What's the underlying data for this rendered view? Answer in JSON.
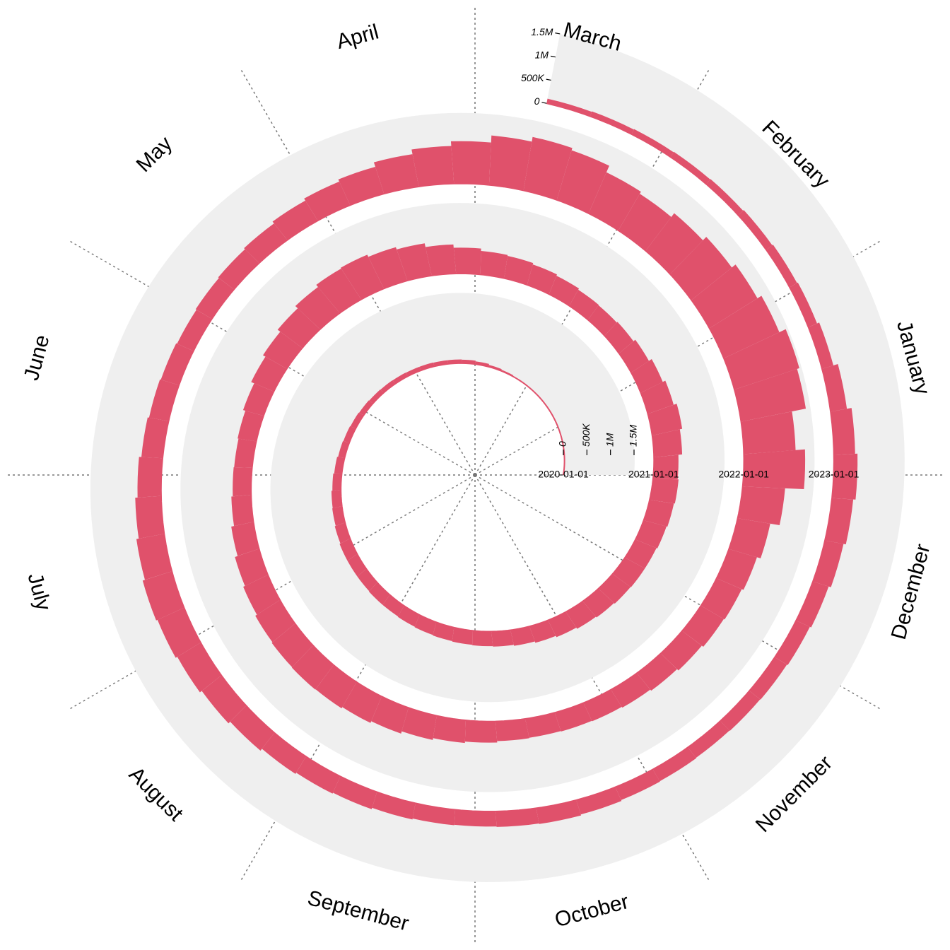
{
  "chart_data": {
    "type": "spiral-bar",
    "color": "#e0516b",
    "ylim": [
      0,
      1500000
    ],
    "yticks": [
      0,
      {
        "value": 500000,
        "label": "500K"
      },
      {
        "value": 1000000,
        "label": "1M"
      },
      {
        "value": 1500000,
        "label": "1.5M"
      }
    ],
    "xticks": [
      "2020-01-01",
      "2021-01-01",
      "2022-01-01",
      "2023-01-01"
    ],
    "months": [
      "January",
      "February",
      "March",
      "April",
      "May",
      "June",
      "July",
      "August",
      "September",
      "October",
      "November",
      "December"
    ],
    "x": [
      "2020-01-01",
      "2020-01-08",
      "2020-01-15",
      "2020-01-22",
      "2020-01-29",
      "2020-02-05",
      "2020-02-12",
      "2020-02-19",
      "2020-02-26",
      "2020-03-04",
      "2020-03-11",
      "2020-03-18",
      "2020-03-25",
      "2020-04-01",
      "2020-04-08",
      "2020-04-15",
      "2020-04-22",
      "2020-04-29",
      "2020-05-06",
      "2020-05-13",
      "2020-05-20",
      "2020-05-27",
      "2020-06-03",
      "2020-06-10",
      "2020-06-17",
      "2020-06-24",
      "2020-07-01",
      "2020-07-08",
      "2020-07-15",
      "2020-07-22",
      "2020-07-29",
      "2020-08-05",
      "2020-08-12",
      "2020-08-19",
      "2020-08-26",
      "2020-09-02",
      "2020-09-09",
      "2020-09-16",
      "2020-09-23",
      "2020-09-30",
      "2020-10-07",
      "2020-10-14",
      "2020-10-21",
      "2020-10-28",
      "2020-11-04",
      "2020-11-11",
      "2020-11-18",
      "2020-11-25",
      "2020-12-02",
      "2020-12-09",
      "2020-12-16",
      "2020-12-23",
      "2020-12-30",
      "2021-01-06",
      "2021-01-13",
      "2021-01-20",
      "2021-01-27",
      "2021-02-03",
      "2021-02-10",
      "2021-02-17",
      "2021-02-24",
      "2021-03-03",
      "2021-03-10",
      "2021-03-17",
      "2021-03-24",
      "2021-03-31",
      "2021-04-07",
      "2021-04-14",
      "2021-04-21",
      "2021-04-28",
      "2021-05-05",
      "2021-05-12",
      "2021-05-19",
      "2021-05-26",
      "2021-06-02",
      "2021-06-09",
      "2021-06-16",
      "2021-06-23",
      "2021-06-30",
      "2021-07-07",
      "2021-07-14",
      "2021-07-21",
      "2021-07-28",
      "2021-08-04",
      "2021-08-11",
      "2021-08-18",
      "2021-08-25",
      "2021-09-01",
      "2021-09-08",
      "2021-09-15",
      "2021-09-22",
      "2021-09-29",
      "2021-10-06",
      "2021-10-13",
      "2021-10-20",
      "2021-10-27",
      "2021-11-03",
      "2021-11-10",
      "2021-11-17",
      "2021-11-24",
      "2021-12-01",
      "2021-12-08",
      "2021-12-15",
      "2021-12-22",
      "2021-12-29",
      "2022-01-05",
      "2022-01-12",
      "2022-01-19",
      "2022-01-26",
      "2022-02-02",
      "2022-02-09",
      "2022-02-16",
      "2022-02-23",
      "2022-03-02",
      "2022-03-09",
      "2022-03-16",
      "2022-03-23",
      "2022-03-30",
      "2022-04-06",
      "2022-04-13",
      "2022-04-20",
      "2022-04-27",
      "2022-05-04",
      "2022-05-11",
      "2022-05-18",
      "2022-05-25",
      "2022-06-01",
      "2022-06-08",
      "2022-06-15",
      "2022-06-22",
      "2022-06-29",
      "2022-07-06",
      "2022-07-13",
      "2022-07-20",
      "2022-07-27",
      "2022-08-03",
      "2022-08-10",
      "2022-08-17",
      "2022-08-24",
      "2022-08-31",
      "2022-09-07",
      "2022-09-14",
      "2022-09-21",
      "2022-09-28",
      "2022-10-05",
      "2022-10-12",
      "2022-10-19",
      "2022-10-26",
      "2022-11-02",
      "2022-11-09",
      "2022-11-16",
      "2022-11-23",
      "2022-11-30",
      "2022-12-07",
      "2022-12-14",
      "2022-12-21",
      "2022-12-28",
      "2023-01-04",
      "2023-01-11",
      "2023-01-18",
      "2023-01-25",
      "2023-02-01",
      "2023-02-08",
      "2023-02-15",
      "2023-02-22",
      "2023-03-01",
      "2023-03-08",
      "2023-03-15"
    ],
    "values": [
      1000,
      2000,
      3000,
      5000,
      3000,
      3000,
      2000,
      2000,
      3000,
      10000,
      25000,
      40000,
      60000,
      75000,
      80000,
      80000,
      85000,
      85000,
      90000,
      95000,
      100000,
      110000,
      120000,
      130000,
      140000,
      160000,
      180000,
      200000,
      210000,
      230000,
      250000,
      250000,
      250000,
      260000,
      260000,
      270000,
      280000,
      290000,
      300000,
      310000,
      320000,
      340000,
      370000,
      400000,
      430000,
      450000,
      470000,
      480000,
      480000,
      500000,
      520000,
      540000,
      520000,
      600000,
      650000,
      580000,
      520000,
      450000,
      400000,
      380000,
      390000,
      420000,
      450000,
      480000,
      500000,
      550000,
      620000,
      700000,
      750000,
      800000,
      780000,
      720000,
      650000,
      580000,
      520000,
      450000,
      400000,
      380000,
      390000,
      420000,
      480000,
      540000,
      580000,
      620000,
      640000,
      650000,
      640000,
      610000,
      570000,
      520000,
      480000,
      450000,
      420000,
      410000,
      420000,
      430000,
      450000,
      480000,
      520000,
      560000,
      580000,
      620000,
      700000,
      900000,
      1300000,
      1100000,
      1400000,
      1450000,
      1300000,
      1200000,
      1100000,
      1000000,
      900000,
      950000,
      1100000,
      1150000,
      1050000,
      900000,
      800000,
      700000,
      600000,
      550000,
      500000,
      450000,
      420000,
      400000,
      380000,
      400000,
      420000,
      450000,
      500000,
      550000,
      600000,
      650000,
      620000,
      580000,
      530000,
      480000,
      430000,
      400000,
      380000,
      350000,
      330000,
      320000,
      330000,
      340000,
      320000,
      300000,
      290000,
      280000,
      290000,
      300000,
      320000,
      350000,
      400000,
      450000,
      500000,
      450000,
      350000,
      250000,
      200000,
      180000,
      160000,
      140000,
      130000,
      120000,
      110000,
      100000
    ]
  }
}
